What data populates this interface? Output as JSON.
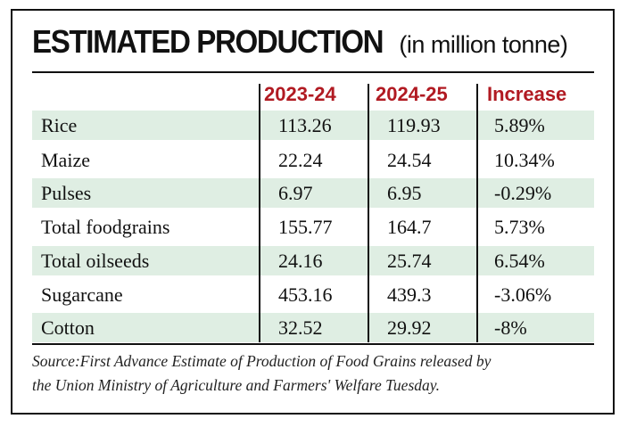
{
  "title": {
    "main": "ESTIMATED PRODUCTION",
    "unit": "(in million tonne)"
  },
  "columns": [
    "2023-24",
    "2024-25",
    "Increase"
  ],
  "rows": [
    {
      "label": "Rice",
      "y2023": "113.26",
      "y2024": "119.93",
      "increase": "5.89%"
    },
    {
      "label": "Maize",
      "y2023": "22.24",
      "y2024": "24.54",
      "increase": "10.34%"
    },
    {
      "label": "Pulses",
      "y2023": "6.97",
      "y2024": "6.95",
      "increase": "-0.29%"
    },
    {
      "label": "Total foodgrains",
      "y2023": "155.77",
      "y2024": "164.7",
      "increase": "5.73%"
    },
    {
      "label": "Total oilseeds",
      "y2023": "24.16",
      "y2024": "25.74",
      "increase": "6.54%"
    },
    {
      "label": "Sugarcane",
      "y2023": "453.16",
      "y2024": "439.3",
      "increase": "-3.06%"
    },
    {
      "label": "Cotton",
      "y2023": "32.52",
      "y2024": "29.92",
      "increase": "-8%"
    }
  ],
  "source": {
    "line1": "Source:First Advance Estimate of Production of Food Grains released by",
    "line2": "the Union Ministry of Agriculture and Farmers' Welfare Tuesday."
  },
  "colors": {
    "header_text": "#b11a22",
    "row_shade": "#dfeee3",
    "rule": "#111111"
  }
}
